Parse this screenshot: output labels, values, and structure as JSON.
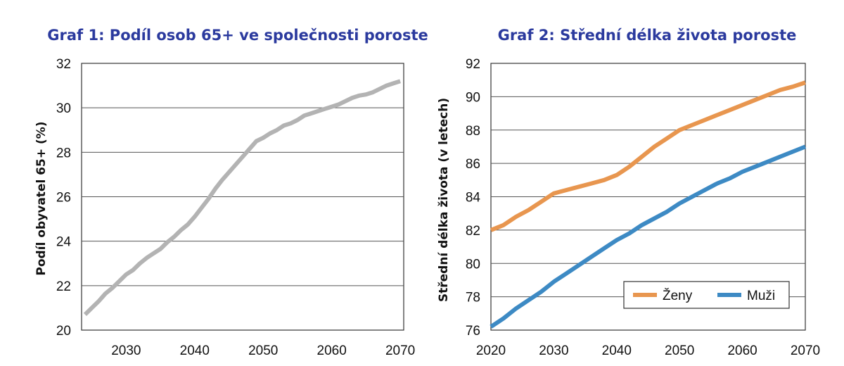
{
  "chart_data": [
    {
      "type": "line",
      "title": "Graf 1: Podíl osob 65+ ve společnosti poroste",
      "xlabel": "",
      "ylabel": "Podíl obyvatel 65+ (%)",
      "xlim": [
        2023.5,
        2070.5
      ],
      "ylim": [
        20,
        32
      ],
      "xticks": [
        2030,
        2040,
        2050,
        2060,
        2070
      ],
      "yticks": [
        20,
        22,
        24,
        26,
        28,
        30,
        32
      ],
      "grid": true,
      "colors": {
        "line": "#b3b3b3"
      },
      "series": [
        {
          "x": [
            2024,
            2025,
            2026,
            2027,
            2028,
            2029,
            2030,
            2031,
            2032,
            2033,
            2034,
            2035,
            2036,
            2037,
            2038,
            2039,
            2040,
            2041,
            2042,
            2043,
            2044,
            2045,
            2046,
            2047,
            2048,
            2049,
            2050,
            2051,
            2052,
            2053,
            2054,
            2055,
            2056,
            2057,
            2058,
            2059,
            2060,
            2061,
            2062,
            2063,
            2064,
            2065,
            2066,
            2067,
            2068,
            2069,
            2070
          ],
          "values": [
            20.7,
            21.0,
            21.3,
            21.65,
            21.9,
            22.2,
            22.5,
            22.7,
            23.0,
            23.25,
            23.45,
            23.65,
            23.95,
            24.2,
            24.5,
            24.75,
            25.1,
            25.5,
            25.9,
            26.35,
            26.75,
            27.1,
            27.45,
            27.8,
            28.15,
            28.5,
            28.65,
            28.85,
            29.0,
            29.2,
            29.3,
            29.45,
            29.65,
            29.75,
            29.85,
            29.95,
            30.05,
            30.15,
            30.3,
            30.45,
            30.55,
            30.6,
            30.7,
            30.85,
            31.0,
            31.1,
            31.2
          ]
        }
      ]
    },
    {
      "type": "line",
      "title": "Graf 2: Střední délka života poroste",
      "xlabel": "",
      "ylabel": "Střední délka života (v letech)",
      "xlim": [
        2020,
        2070
      ],
      "ylim": [
        76,
        92
      ],
      "xticks": [
        2020,
        2030,
        2040,
        2050,
        2060,
        2070
      ],
      "yticks": [
        76,
        78,
        80,
        82,
        84,
        86,
        88,
        90,
        92
      ],
      "grid": true,
      "legend_position": "bottom-right",
      "series": [
        {
          "name": "Ženy",
          "color": "#e8964f",
          "x": [
            2020,
            2022,
            2024,
            2026,
            2028,
            2030,
            2032,
            2034,
            2036,
            2038,
            2040,
            2042,
            2044,
            2046,
            2048,
            2050,
            2052,
            2054,
            2056,
            2058,
            2060,
            2062,
            2064,
            2066,
            2068,
            2070
          ],
          "values": [
            82.0,
            82.3,
            82.8,
            83.2,
            83.7,
            84.2,
            84.4,
            84.6,
            84.8,
            85.0,
            85.3,
            85.8,
            86.4,
            87.0,
            87.5,
            88.0,
            88.3,
            88.6,
            88.9,
            89.2,
            89.5,
            89.8,
            90.1,
            90.4,
            90.6,
            90.85
          ]
        },
        {
          "name": "Muži",
          "color": "#3d8ac4",
          "x": [
            2020,
            2022,
            2024,
            2026,
            2028,
            2030,
            2032,
            2034,
            2036,
            2038,
            2040,
            2042,
            2044,
            2046,
            2048,
            2050,
            2052,
            2054,
            2056,
            2058,
            2060,
            2062,
            2064,
            2066,
            2068,
            2070
          ],
          "values": [
            76.2,
            76.7,
            77.3,
            77.8,
            78.3,
            78.9,
            79.4,
            79.9,
            80.4,
            80.9,
            81.4,
            81.8,
            82.3,
            82.7,
            83.1,
            83.6,
            84.0,
            84.4,
            84.8,
            85.1,
            85.5,
            85.8,
            86.1,
            86.4,
            86.7,
            87.0
          ]
        }
      ]
    }
  ]
}
